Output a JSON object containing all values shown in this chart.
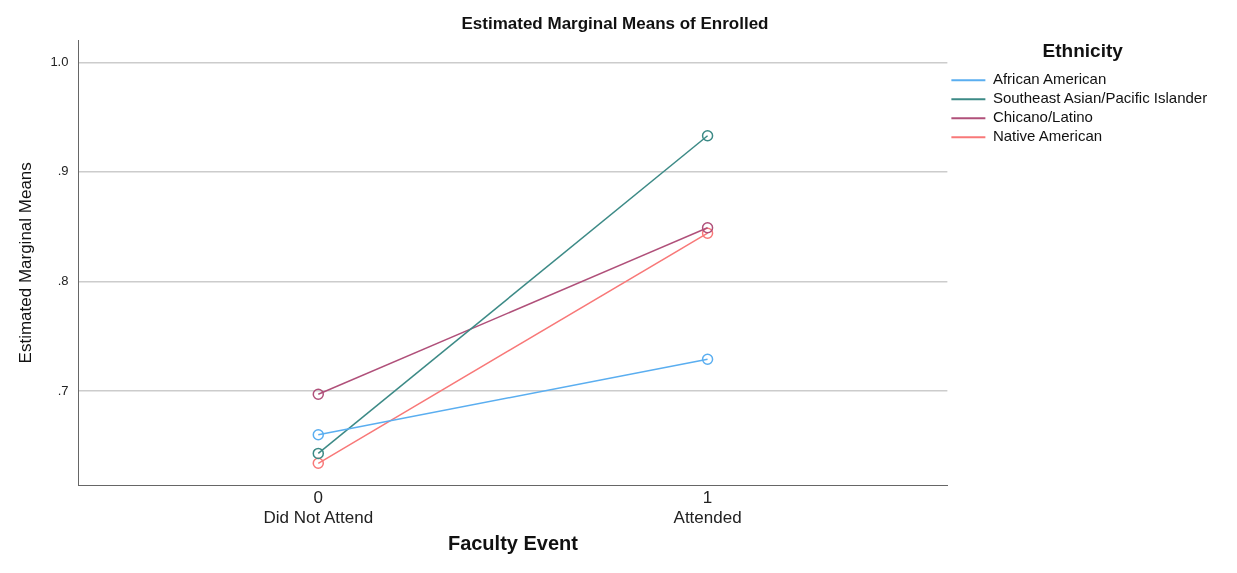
{
  "chart_data": {
    "type": "line",
    "title": "Estimated Marginal Means of Enrolled",
    "xlabel": "Faculty Event",
    "ylabel": "Estimated Marginal Means",
    "legend_title": "Ethnicity",
    "categories": [
      "0\nDid Not Attend",
      "1\nAttended"
    ],
    "series": [
      {
        "name": "African American",
        "color": "#5aaef0",
        "values": [
          0.66,
          0.729
        ]
      },
      {
        "name": "Southeast Asian/Pacific Islander",
        "color": "#3c8a86",
        "values": [
          0.643,
          0.933
        ]
      },
      {
        "name": "Chicano/Latino",
        "color": "#b0507a",
        "values": [
          0.697,
          0.849
        ]
      },
      {
        "name": "Native American",
        "color": "#f87878",
        "values": [
          0.634,
          0.844
        ]
      }
    ],
    "ylim": [
      0.614,
      1.02
    ],
    "yticks": [
      {
        "value": 0.7,
        "label": ".7"
      },
      {
        "value": 0.8,
        "label": ".8"
      },
      {
        "value": 0.9,
        "label": ".9"
      },
      {
        "value": 1.0,
        "label": "1.0"
      }
    ],
    "grid": "y",
    "legend": "top right",
    "marker": "circle",
    "line_style": "solid"
  }
}
